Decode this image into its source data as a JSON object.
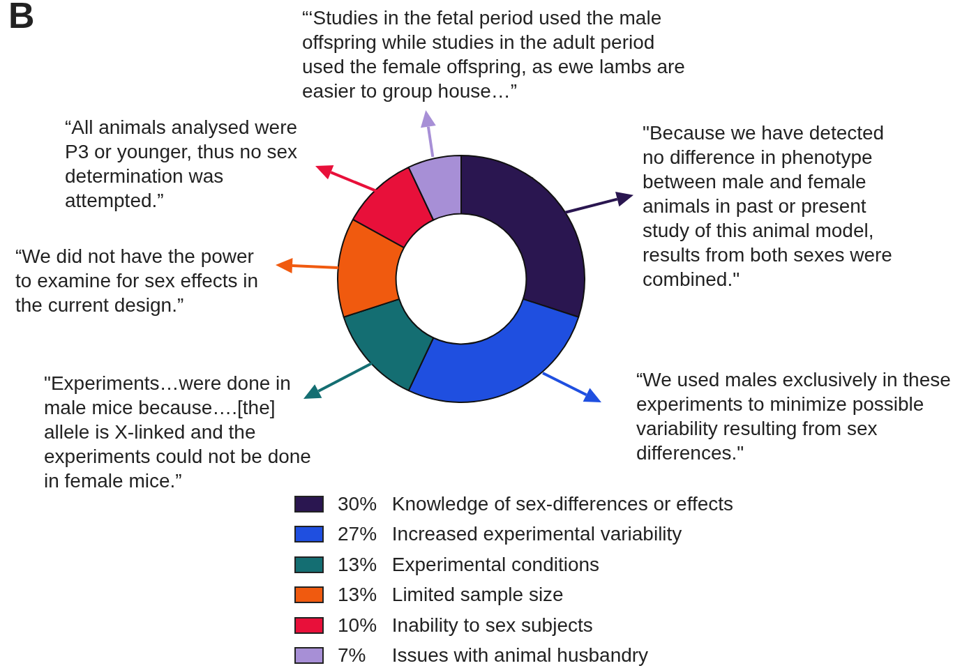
{
  "chart_data": {
    "type": "donut",
    "title": "B",
    "categories": [
      "Knowledge of sex-differences or effects",
      "Increased experimental variability",
      "Experimental conditions",
      "Limited sample size",
      "Inability to sex subjects",
      "Issues with animal husbandry"
    ],
    "values": [
      30,
      27,
      13,
      13,
      10,
      7
    ],
    "value_labels": [
      "30%",
      "27%",
      "13%",
      "13%",
      "10%",
      "7%"
    ],
    "colors": [
      "#2a1650",
      "#1f4fe0",
      "#146e72",
      "#f05a0f",
      "#e8103a",
      "#a78fd6"
    ],
    "legend": "bottom",
    "annotations": [
      "\"Because we have detected no difference in phenotype between male and female animals in past or present study of this animal model, results from both sexes were combined.\"",
      "“We used males exclusively in these experiments to minimize possible variability resulting from sex differences.\"",
      "\"Experiments…were done in male mice because….[the] allele is X-linked and the experiments could not be done in female mice.”",
      "“We did not have the power to examine for sex effects in the current design.”",
      "“All animals analysed were P3 or younger, thus no sex determination was attempted.”",
      "“‘Studies in the fetal period used the male offspring while studies in the adult period used the female offspring, as ewe lambs are easier to group house…”"
    ]
  }
}
